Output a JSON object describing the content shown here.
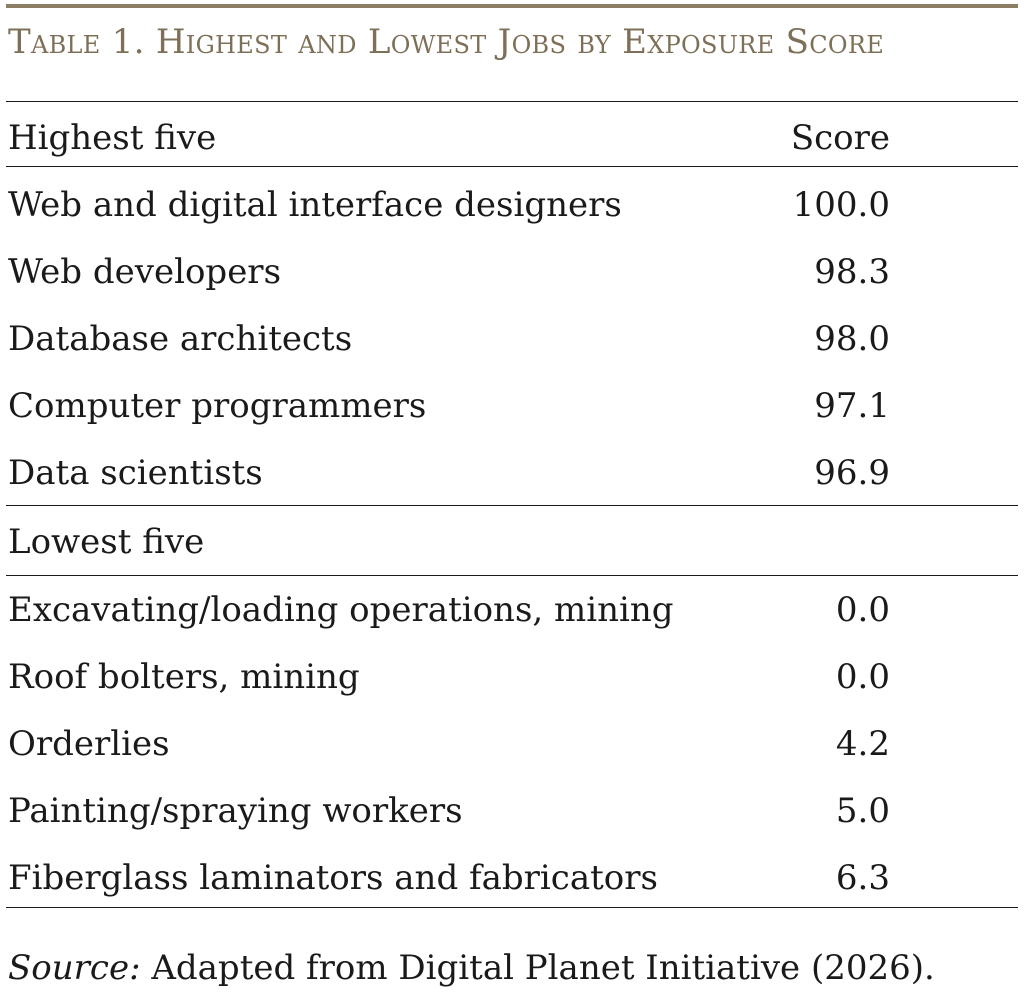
{
  "title": "Table 1. Highest and Lowest Jobs by Exposure Score",
  "header": {
    "col1": "Highest five",
    "col2": "Score"
  },
  "highest": [
    {
      "label": "Web and digital interface designers",
      "score": "100.0"
    },
    {
      "label": "Web developers",
      "score": "98.3"
    },
    {
      "label": "Database architects",
      "score": "98.0"
    },
    {
      "label": "Computer programmers",
      "score": "97.1"
    },
    {
      "label": "Data scientists",
      "score": "96.9"
    }
  ],
  "lowest_header": "Lowest five",
  "lowest": [
    {
      "label": "Excavating/loading operations, mining",
      "score": "0.0"
    },
    {
      "label": "Roof bolters, mining",
      "score": "0.0"
    },
    {
      "label": "Orderlies",
      "score": "4.2"
    },
    {
      "label": "Painting/spraying workers",
      "score": "5.0"
    },
    {
      "label": "Fiberglass laminators and fabricators",
      "score": "6.3"
    }
  ],
  "source": {
    "prefix": "Source:",
    "text": " Adapted from Digital Planet Initiative (2026)."
  },
  "colors": {
    "title": "#7e7058",
    "accent_rule": "#8b7d63",
    "text": "#1a1a1a"
  }
}
